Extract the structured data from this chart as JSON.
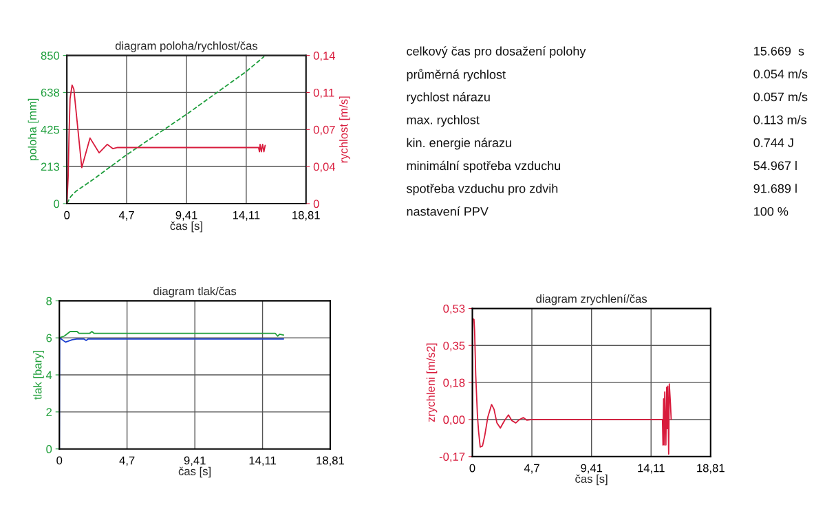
{
  "chart_data": [
    {
      "type": "line",
      "title": "diagram poloha/rychlost/čas",
      "xlabel": "čas [s]",
      "ylabel": "poloha [mm]",
      "y2label": "rychlost [m/s]",
      "xlim": [
        0,
        18.81
      ],
      "xticks": [
        0,
        {
          "value": 4.7,
          "label": "4,7"
        },
        {
          "value": 9.41,
          "label": "9,41"
        },
        {
          "value": 14.11,
          "label": "14,11"
        },
        {
          "value": 18.81,
          "label": "18,81"
        }
      ],
      "ylim": [
        0,
        850
      ],
      "yticks": [
        0,
        213,
        425,
        638,
        850
      ],
      "y2lim": [
        0,
        0.14
      ],
      "y2ticks": [
        0,
        {
          "value": 0.035,
          "label": "0,04"
        },
        {
          "value": 0.07,
          "label": "0,07"
        },
        {
          "value": 0.105,
          "label": "0,11"
        },
        {
          "value": 0.14,
          "label": "0,14"
        }
      ],
      "grid": true,
      "series": [
        {
          "color": "#1e9e3c",
          "line_style": "dashed",
          "x": [
            0,
            0.3,
            0.7,
            1.3,
            2.0,
            4.7,
            9.41,
            14.11,
            15.52
          ],
          "values": [
            0,
            40,
            70,
            100,
            135,
            280,
            512,
            758,
            844
          ]
        },
        {
          "color": "#d81b3c",
          "axis": "y2",
          "x": [
            0,
            0.1,
            0.17,
            0.25,
            0.41,
            0.55,
            1.17,
            1.82,
            2.54,
            3.18,
            3.61,
            3.99,
            15.08,
            15.15,
            15.2,
            15.3,
            15.4,
            15.5,
            15.6
          ],
          "values": [
            0,
            0.025,
            0.065,
            0.099,
            0.112,
            0.108,
            0.034,
            0.062,
            0.048,
            0.056,
            0.052,
            0.053,
            0.053,
            0.049,
            0.056,
            0.049,
            0.056,
            0.049,
            0.055
          ]
        }
      ]
    },
    {
      "type": "other",
      "annotations": [
        "celkový čas pro dosažení polohy",
        "15.669  s",
        "průměrná rychlost",
        "0.054 m/s",
        "rychlost nárazu",
        "0.057 m/s",
        "max. rychlost",
        "0.113 m/s",
        "kin. energie nárazu",
        "0.744 J",
        "minimální spotřeba vzduchu",
        "54.967 l",
        "spotřeba vzduchu pro zdvih",
        "91.689 l",
        "nastavení PPV",
        "100 %"
      ]
    },
    {
      "type": "line",
      "title": "diagram tlak/čas",
      "xlabel": "čas [s]",
      "ylabel": "tlak [bary]",
      "xlim": [
        0,
        18.81
      ],
      "xticks": [
        0,
        {
          "value": 4.7,
          "label": "4,7"
        },
        {
          "value": 9.41,
          "label": "9,41"
        },
        {
          "value": 14.11,
          "label": "14,11"
        },
        {
          "value": 18.81,
          "label": "18,81"
        }
      ],
      "ylim": [
        0,
        8
      ],
      "yticks": [
        0,
        2,
        4,
        6,
        8
      ],
      "grid": true,
      "series": [
        {
          "color": "#22a03c",
          "x": [
            0,
            0.35,
            0.75,
            1.23,
            1.38,
            2.1,
            2.26,
            2.42,
            15.0,
            15.16,
            15.3,
            15.57
          ],
          "values": [
            6.0,
            6.1,
            6.34,
            6.34,
            6.24,
            6.24,
            6.34,
            6.24,
            6.24,
            6.09,
            6.2,
            6.15
          ]
        },
        {
          "color": "#1a3fd0",
          "x": [
            0,
            0.02,
            0.43,
            0.9,
            1.2,
            1.7,
            1.86,
            2.0,
            15.57
          ],
          "values": [
            0,
            6.0,
            5.77,
            5.9,
            5.94,
            5.94,
            5.86,
            5.94,
            5.94
          ]
        }
      ]
    },
    {
      "type": "line",
      "title": "diagram zrychlení/čas",
      "xlabel": "čas [s]",
      "ylabel": "zrychleni [m/s2]",
      "xlim": [
        0,
        18.81
      ],
      "xticks": [
        0,
        {
          "value": 4.7,
          "label": "4,7"
        },
        {
          "value": 9.41,
          "label": "9,41"
        },
        {
          "value": 14.11,
          "label": "14,11"
        },
        {
          "value": 18.81,
          "label": "18,81"
        }
      ],
      "ylim": [
        -0.175,
        0.525
      ],
      "yticks": [
        {
          "value": -0.175,
          "label": "-0,17"
        },
        {
          "value": 0,
          "label": "0,00"
        },
        {
          "value": 0.175,
          "label": "0,18"
        },
        {
          "value": 0.35,
          "label": "0,35"
        },
        {
          "value": 0.525,
          "label": "0,53"
        }
      ],
      "grid": true,
      "series": [
        {
          "color": "#d81b3c",
          "x": [
            0,
            0.01,
            0.13,
            0.18,
            0.27,
            0.4,
            0.49,
            0.62,
            0.8,
            0.98,
            1.22,
            1.52,
            1.71,
            1.94,
            2.21,
            2.54,
            2.85,
            3.12,
            3.43,
            3.72,
            4.03,
            4.3,
            4.72,
            15.01,
            15.05,
            15.1,
            15.14,
            15.19,
            15.24,
            15.28,
            15.34,
            15.39,
            15.43,
            15.5,
            15.55,
            15.64,
            15.7
          ],
          "values": [
            0,
            0.478,
            0.473,
            0.418,
            0.207,
            0.022,
            -0.054,
            -0.13,
            -0.125,
            -0.076,
            0.011,
            0.071,
            0.049,
            -0.016,
            -0.04,
            -0.005,
            0.022,
            -0.005,
            -0.016,
            0,
            0.009,
            -0.003,
            0,
            0,
            -0.12,
            0.098,
            -0.12,
            0.13,
            -0.043,
            -0.12,
            0.152,
            -0.043,
            0.158,
            -0.163,
            0.168,
            0.076,
            0
          ]
        }
      ]
    }
  ]
}
